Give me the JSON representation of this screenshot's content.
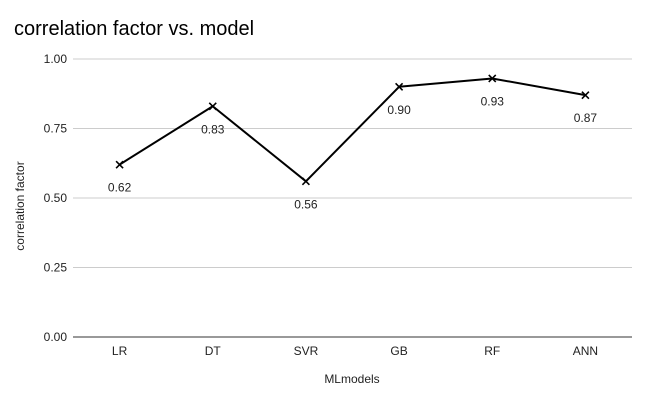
{
  "chart_data": {
    "type": "line",
    "title": "correlation factor vs. model",
    "xlabel": "MLmodels",
    "ylabel": "correlation factor",
    "categories": [
      "LR",
      "DT",
      "SVR",
      "GB",
      "RF",
      "ANN"
    ],
    "series": [
      {
        "values": [
          0.62,
          0.83,
          0.56,
          0.9,
          0.93,
          0.87
        ]
      }
    ],
    "data_labels": [
      "0.62",
      "0.83",
      "0.56",
      "0.90",
      "0.93",
      "0.87"
    ],
    "ylim": [
      0,
      1
    ],
    "yticks": [
      "0.00",
      "0.25",
      "0.50",
      "0.75",
      "1.00"
    ],
    "ytick_values": [
      0,
      0.25,
      0.5,
      0.75,
      1.0
    ],
    "grid": true,
    "legend": "none",
    "colors": {
      "line": "#000000",
      "grid": "#cccccc"
    },
    "marker": "x-mark"
  }
}
